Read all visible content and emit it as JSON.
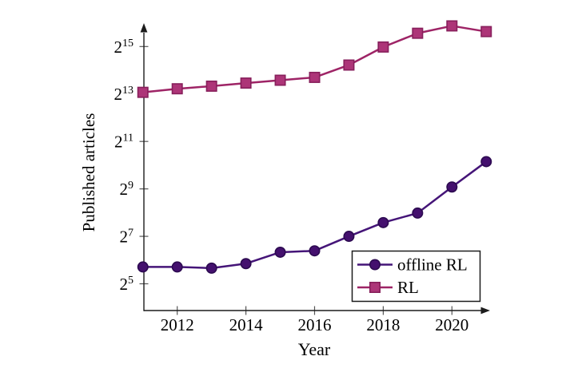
{
  "figure": {
    "background_color": "#ffffff",
    "axis_color": "#1c1c1c",
    "tick_color": "#555555",
    "text_color": "#000000"
  },
  "chart_data": {
    "type": "line",
    "title": "",
    "xlabel": "Year",
    "ylabel": "Published articles",
    "x": [
      2011,
      2012,
      2013,
      2014,
      2015,
      2016,
      2017,
      2018,
      2019,
      2020,
      2021
    ],
    "x_axis": {
      "ticks": [
        2012,
        2014,
        2016,
        2018,
        2020
      ],
      "range": [
        2011,
        2021.8
      ],
      "arrow": true
    },
    "y_axis": {
      "scale": "log2",
      "tick_label_base": "2",
      "tick_exponents": [
        15,
        13,
        11,
        9,
        7,
        5
      ],
      "range_exponents": [
        3.9,
        16.0
      ],
      "arrow": true
    },
    "series": [
      {
        "name": "offline RL",
        "marker": "circle",
        "line_color": "#451578",
        "marker_fill": "#44106e",
        "marker_stroke": "#2c0a50",
        "log2_values": [
          5.71,
          5.71,
          5.66,
          5.85,
          6.33,
          6.39,
          7.0,
          7.58,
          7.98,
          9.08,
          10.15
        ],
        "approx_values": [
          52,
          52,
          51,
          58,
          80,
          84,
          128,
          191,
          252,
          541,
          1136
        ]
      },
      {
        "name": "RL",
        "marker": "square",
        "line_color": "#9e2466",
        "marker_fill": "#ad3578",
        "marker_stroke": "#871f5b",
        "log2_values": [
          13.07,
          13.22,
          13.33,
          13.46,
          13.58,
          13.7,
          14.22,
          14.98,
          15.56,
          15.87,
          15.63
        ],
        "approx_values": [
          8600,
          9540,
          10300,
          11280,
          12250,
          13310,
          19100,
          32300,
          48300,
          59900,
          50700
        ]
      }
    ],
    "legend": {
      "entries": [
        "offline RL",
        "RL"
      ],
      "position": "inside bottom-right",
      "border_color": "#1c1c1c",
      "background": "#ffffff"
    },
    "grid": false
  }
}
